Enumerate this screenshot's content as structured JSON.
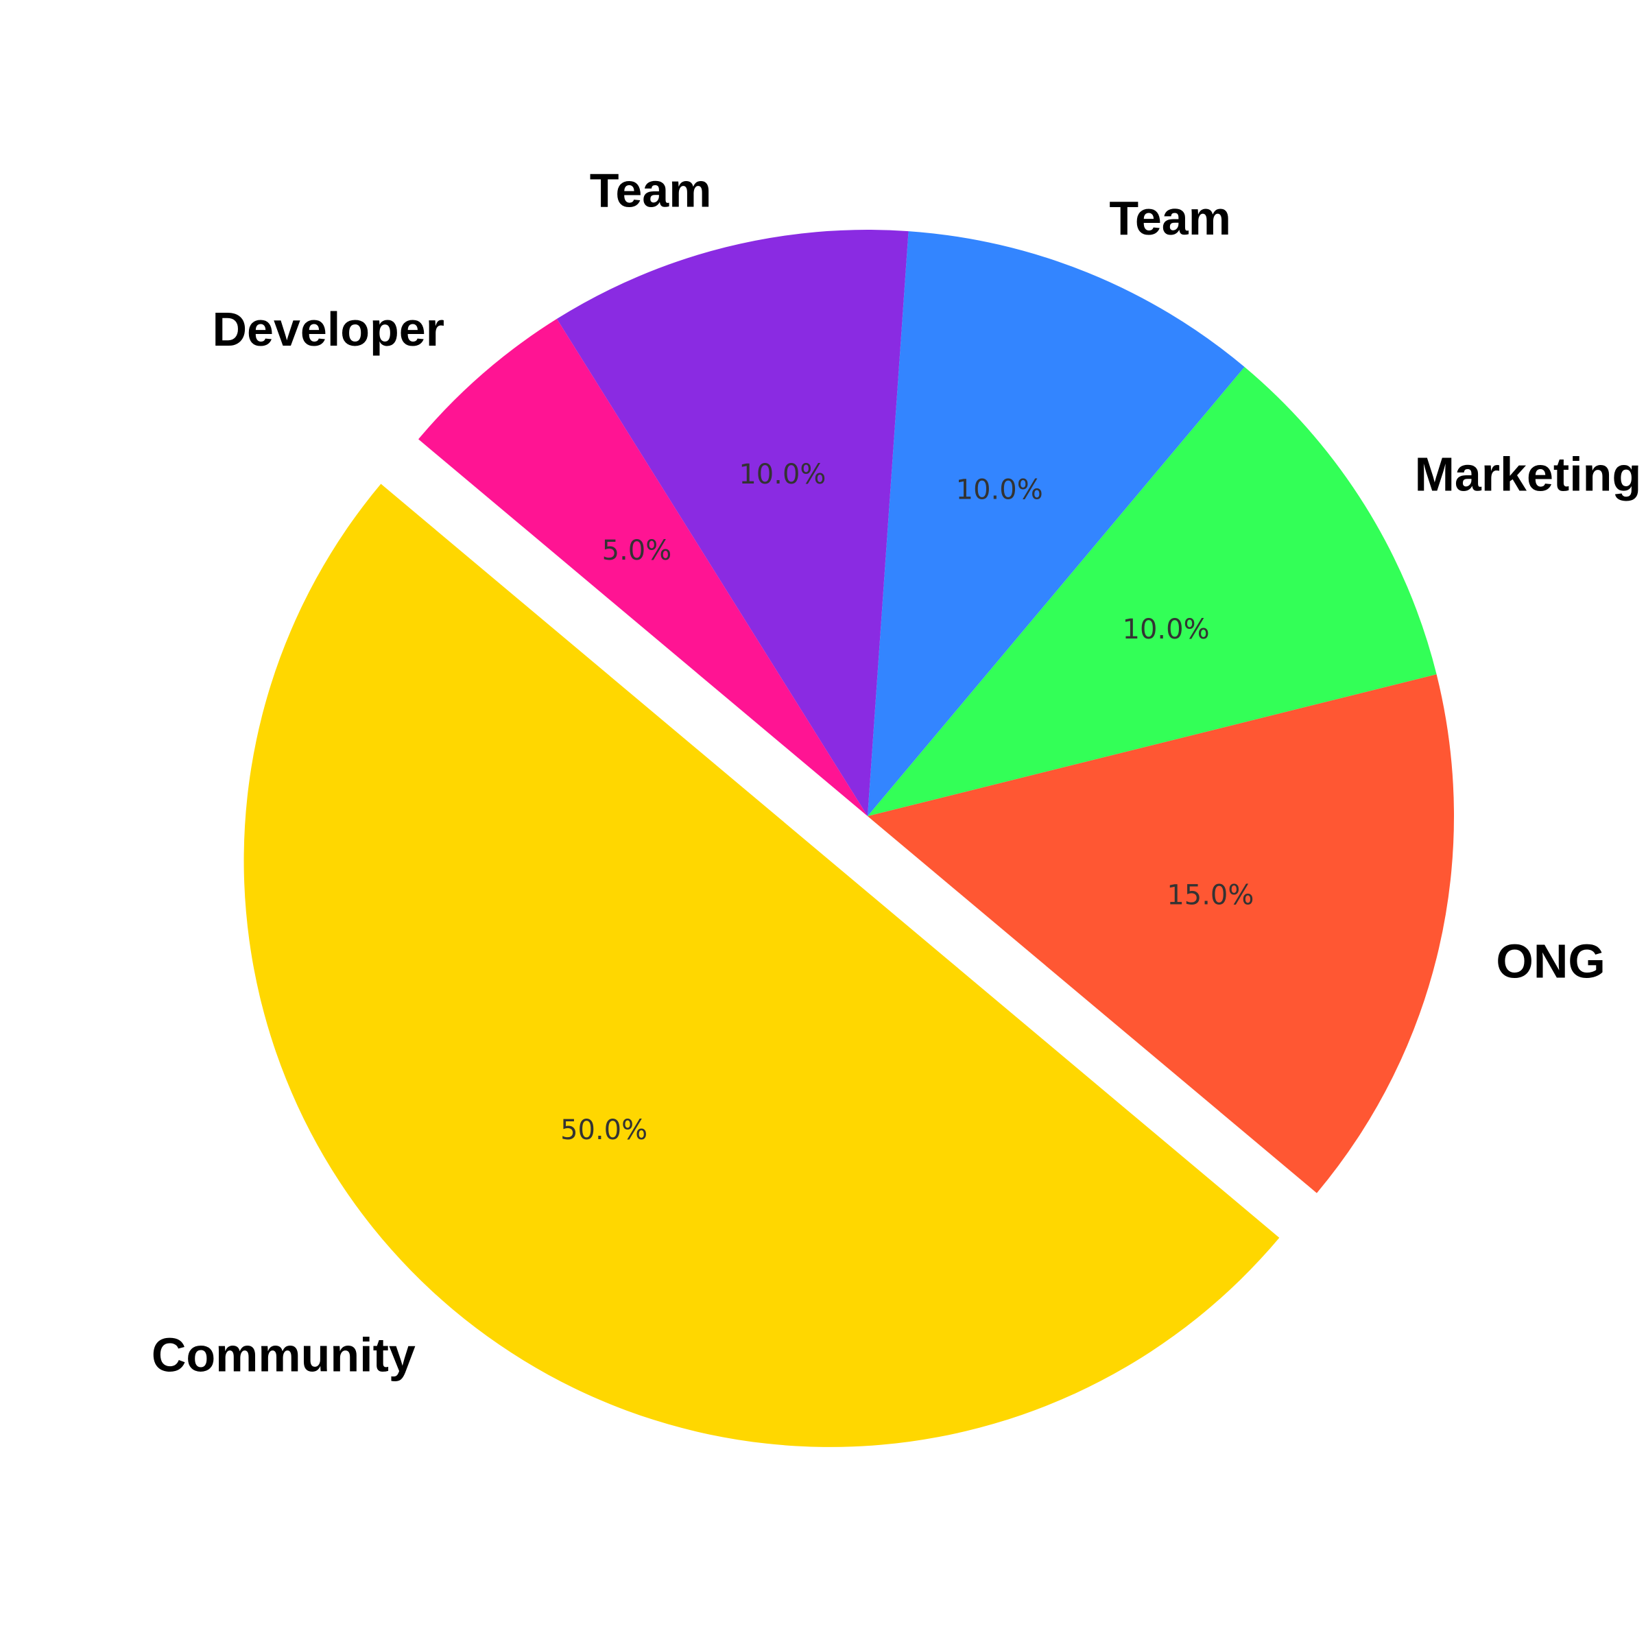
{
  "chart_data": {
    "type": "pie",
    "slices": [
      {
        "label": "Community",
        "value": 50.0,
        "pct_label": "50.0%",
        "color": "#FFD700",
        "exploded": true
      },
      {
        "label": "ONG",
        "value": 15.0,
        "pct_label": "15.0%",
        "color": "#FF5733"
      },
      {
        "label": "Marketing",
        "value": 10.0,
        "pct_label": "10.0%",
        "color": "#33FF57"
      },
      {
        "label": "Team",
        "value": 10.0,
        "pct_label": "10.0%",
        "color": "#3385FF"
      },
      {
        "label": "Team",
        "value": 10.0,
        "pct_label": "10.0%",
        "color": "#8A2BE2"
      },
      {
        "label": "Developer",
        "value": 5.0,
        "pct_label": "5.0%",
        "color": "#FF1493"
      }
    ],
    "direction": "counterclockwise",
    "legend": "none"
  }
}
